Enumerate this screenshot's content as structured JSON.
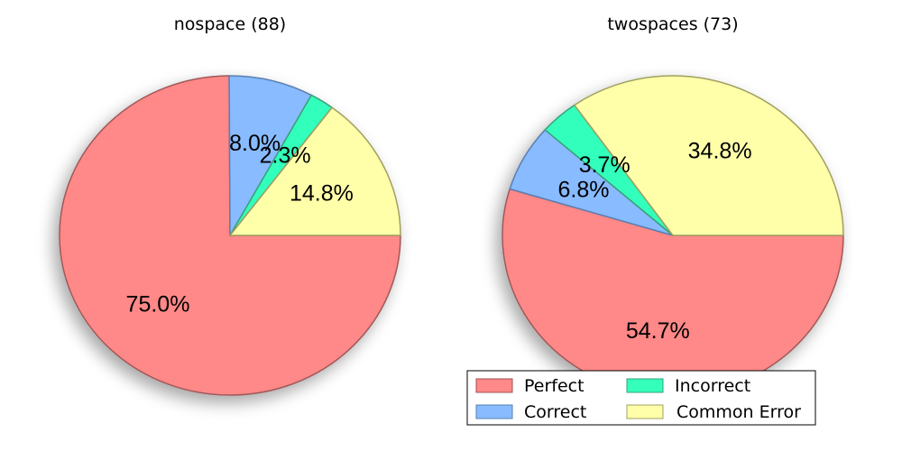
{
  "colors": {
    "Perfect": "#ff8888",
    "Correct": "#88bbff",
    "Incorrect": "#33ffbb",
    "Common Error": "#ffffaa"
  },
  "legend": {
    "entries": [
      "Perfect",
      "Correct",
      "Incorrect",
      "Common Error"
    ],
    "placement": "bottom-right"
  },
  "chart_data": [
    {
      "type": "pie",
      "title": "nospace (88)",
      "categories": [
        "Perfect",
        "Correct",
        "Incorrect",
        "Common Error"
      ],
      "values": [
        75.0,
        8.0,
        2.3,
        14.8
      ],
      "labels": [
        "75.0%",
        "8.0%",
        "2.3%",
        "14.8%"
      ],
      "start_angle_deg": 0,
      "direction": "clockwise",
      "shadow": true
    },
    {
      "type": "pie",
      "title": "twospaces (73)",
      "categories": [
        "Perfect",
        "Correct",
        "Incorrect",
        "Common Error"
      ],
      "values": [
        54.7,
        6.8,
        3.7,
        34.8
      ],
      "labels": [
        "54.7%",
        "6.8%",
        "3.7%",
        "34.8%"
      ],
      "start_angle_deg": 0,
      "direction": "clockwise",
      "shadow": true
    }
  ]
}
